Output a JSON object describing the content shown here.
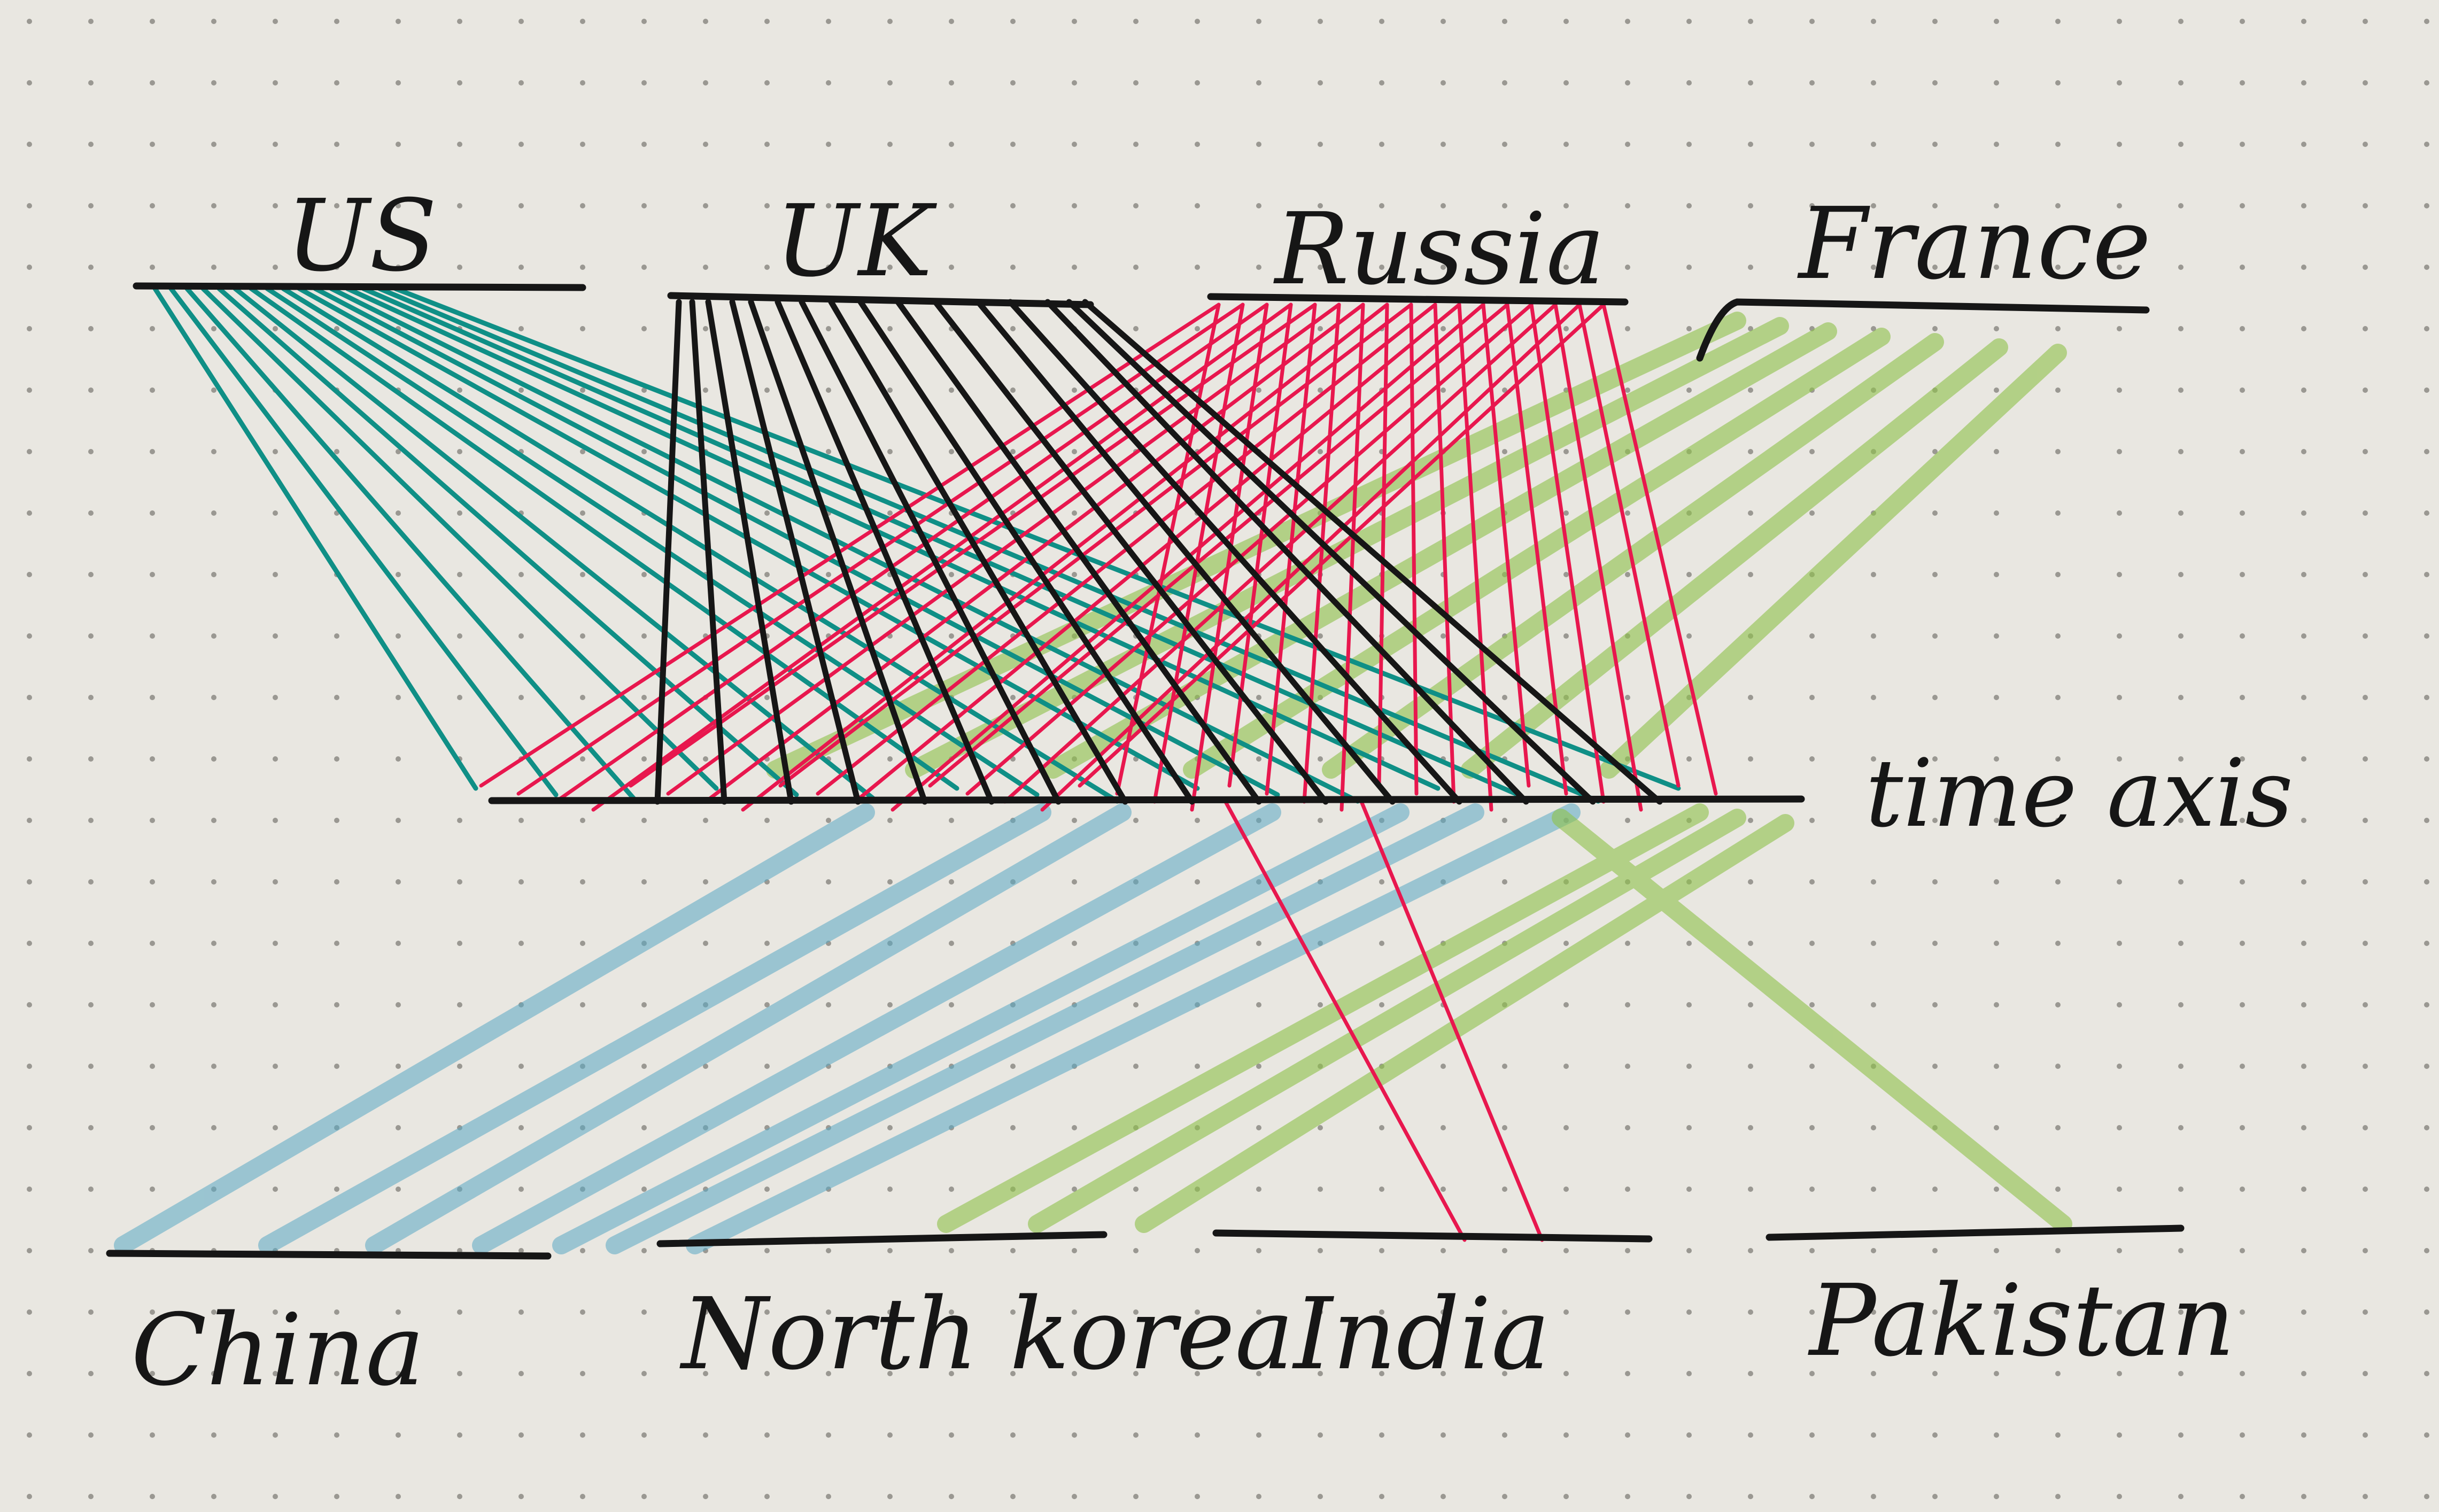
{
  "labels": {
    "top": [
      "US",
      "UK",
      "Russia",
      "France"
    ],
    "bottom": [
      "China",
      "North korea",
      "India",
      "Pakistan"
    ],
    "time_axis": "time axis"
  },
  "colors": {
    "paper": "#e9e7e1",
    "dot": "#9a9892",
    "ink": "#161616",
    "us_teal": "#0f8f86",
    "uk_black": "#161616",
    "russia_red": "#e8174e",
    "france_green": "#8fc24a",
    "china_blue": "#5aa9c4"
  },
  "icons": [
    "dot-grid-paper",
    "hand-drawn-stroke"
  ]
}
